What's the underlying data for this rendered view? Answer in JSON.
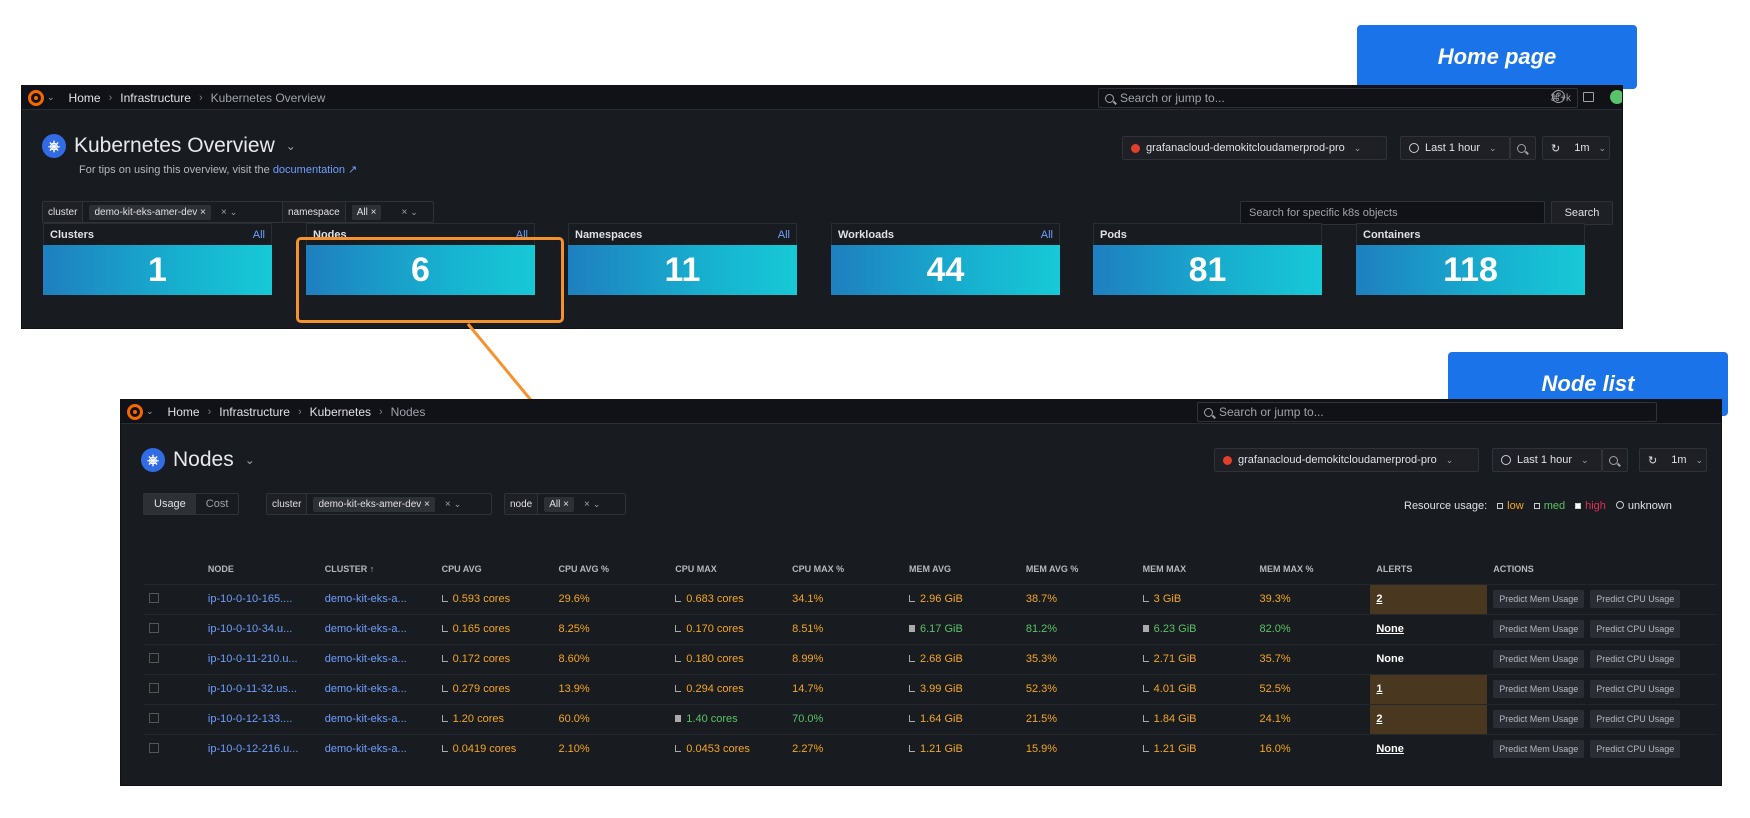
{
  "callouts": {
    "home": "Home page",
    "nodelist": "Node list"
  },
  "home": {
    "breadcrumbs": [
      "Home",
      "Infrastructure",
      "Kubernetes Overview"
    ],
    "search_placeholder": "Search or jump to...",
    "shortcut": "⌘+k",
    "title": "Kubernetes Overview",
    "subtitle_prefix": "For tips on using this overview, visit the",
    "subtitle_link": "documentation",
    "datasource": "grafanacloud-demokitcloudamerprod-pro",
    "time_range": "Last 1 hour",
    "refresh": "1m",
    "filters": {
      "cluster_label": "cluster",
      "cluster_value": "demo-kit-eks-amer-dev",
      "namespace_label": "namespace",
      "namespace_value": "All"
    },
    "object_search_placeholder": "Search for specific k8s objects",
    "search_button": "Search",
    "stats": [
      {
        "title": "Clusters",
        "link": "All",
        "value": "1"
      },
      {
        "title": "Nodes",
        "link": "All",
        "value": "6"
      },
      {
        "title": "Namespaces",
        "link": "All",
        "value": "11"
      },
      {
        "title": "Workloads",
        "link": "All",
        "value": "44"
      },
      {
        "title": "Pods",
        "link": "",
        "value": "81"
      },
      {
        "title": "Containers",
        "link": "",
        "value": "118"
      }
    ]
  },
  "nodes": {
    "breadcrumbs": [
      "Home",
      "Infrastructure",
      "Kubernetes",
      "Nodes"
    ],
    "search_placeholder": "Search or jump to...",
    "title": "Nodes",
    "datasource": "grafanacloud-demokitcloudamerprod-pro",
    "time_range": "Last 1 hour",
    "refresh": "1m",
    "tabs": [
      "Usage",
      "Cost"
    ],
    "filters": {
      "cluster_label": "cluster",
      "cluster_value": "demo-kit-eks-amer-dev",
      "node_label": "node",
      "node_value": "All"
    },
    "legend": {
      "label": "Resource usage:",
      "low": "low",
      "med": "med",
      "high": "high",
      "unknown": "unknown"
    },
    "columns": [
      "NODE",
      "CLUSTER",
      "CPU AVG",
      "CPU AVG %",
      "CPU MAX",
      "CPU MAX %",
      "MEM AVG",
      "MEM AVG %",
      "MEM MAX",
      "MEM MAX %",
      "ALERTS",
      "ACTIONS"
    ],
    "actions": {
      "mem": "Predict Mem Usage",
      "cpu": "Predict CPU Usage"
    },
    "rows": [
      {
        "node": "ip-10-0-10-165....",
        "cluster": "demo-kit-eks-a...",
        "cpu_avg": "0.593 cores",
        "cpu_avg_pct": "29.6%",
        "cpu_max": "0.683 cores",
        "cpu_max_pct": "34.1%",
        "mem_avg": "2.96 GiB",
        "mem_avg_pct": "38.7%",
        "mem_max": "3 GiB",
        "mem_max_pct": "39.3%",
        "alerts": "2"
      },
      {
        "node": "ip-10-0-10-34.u...",
        "cluster": "demo-kit-eks-a...",
        "cpu_avg": "0.165 cores",
        "cpu_avg_pct": "8.25%",
        "cpu_max": "0.170 cores",
        "cpu_max_pct": "8.51%",
        "mem_avg": "6.17 GiB",
        "mem_avg_pct": "81.2%",
        "mem_max": "6.23 GiB",
        "mem_max_pct": "82.0%",
        "alerts": "None"
      },
      {
        "node": "ip-10-0-11-210.u...",
        "cluster": "demo-kit-eks-a...",
        "cpu_avg": "0.172 cores",
        "cpu_avg_pct": "8.60%",
        "cpu_max": "0.180 cores",
        "cpu_max_pct": "8.99%",
        "mem_avg": "2.68 GiB",
        "mem_avg_pct": "35.3%",
        "mem_max": "2.71 GiB",
        "mem_max_pct": "35.7%",
        "alerts": "None"
      },
      {
        "node": "ip-10-0-11-32.us...",
        "cluster": "demo-kit-eks-a...",
        "cpu_avg": "0.279 cores",
        "cpu_avg_pct": "13.9%",
        "cpu_max": "0.294 cores",
        "cpu_max_pct": "14.7%",
        "mem_avg": "3.99 GiB",
        "mem_avg_pct": "52.3%",
        "mem_max": "4.01 GiB",
        "mem_max_pct": "52.5%",
        "alerts": "1"
      },
      {
        "node": "ip-10-0-12-133....",
        "cluster": "demo-kit-eks-a...",
        "cpu_avg": "1.20 cores",
        "cpu_avg_pct": "60.0%",
        "cpu_max": "1.40 cores",
        "cpu_max_pct": "70.0%",
        "mem_avg": "1.64 GiB",
        "mem_avg_pct": "21.5%",
        "mem_max": "1.84 GiB",
        "mem_max_pct": "24.1%",
        "alerts": "2"
      },
      {
        "node": "ip-10-0-12-216.u...",
        "cluster": "demo-kit-eks-a...",
        "cpu_avg": "0.0419 cores",
        "cpu_avg_pct": "2.10%",
        "cpu_max": "0.0453 cores",
        "cpu_max_pct": "2.27%",
        "mem_avg": "1.21 GiB",
        "mem_avg_pct": "15.9%",
        "mem_max": "1.21 GiB",
        "mem_max_pct": "16.0%",
        "alerts": "None"
      }
    ]
  },
  "colors": {
    "accent": "#6e9fff",
    "callout": "#1a73e8",
    "highlight": "#f5922e",
    "low": "#f5a623",
    "med": "#5ac26a",
    "high": "#e0305a"
  }
}
